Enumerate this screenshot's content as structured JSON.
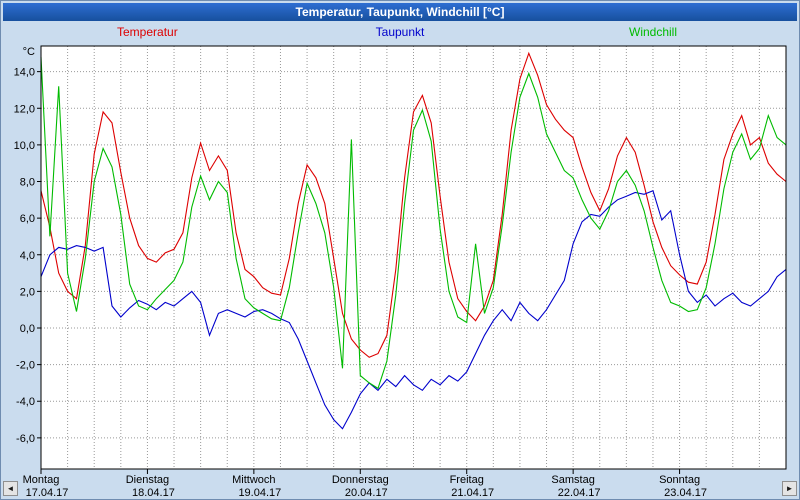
{
  "window": {
    "title": "Temperatur, Taupunkt, Windchill [°C]"
  },
  "legend": [
    {
      "label": "Temperatur",
      "color": "#dd0000"
    },
    {
      "label": "Taupunkt",
      "color": "#0000cc"
    },
    {
      "label": "Windchill",
      "color": "#00bb00"
    }
  ],
  "scrollbar": {
    "left_arrow": "◄",
    "right_arrow": "►"
  },
  "chart_data": {
    "type": "line",
    "title": "Temperatur, Taupunkt, Windchill [°C]",
    "y_unit": "°C",
    "ylim": [
      -7.7,
      15.4
    ],
    "grid": true,
    "x_total_hours": 168,
    "x_step_hours": 2,
    "x_grid_hours": 6,
    "y_ticks": [
      {
        "value": 14,
        "label": "14,0"
      },
      {
        "value": 12,
        "label": "12,0"
      },
      {
        "value": 10,
        "label": "10,0"
      },
      {
        "value": 8,
        "label": "8,0"
      },
      {
        "value": 6,
        "label": "6,0"
      },
      {
        "value": 4,
        "label": "4,0"
      },
      {
        "value": 2,
        "label": "2,0"
      },
      {
        "value": 0,
        "label": "0,0"
      },
      {
        "value": -2,
        "label": "-2,0"
      },
      {
        "value": -4,
        "label": "-4,0"
      },
      {
        "value": -6,
        "label": "-6,0"
      }
    ],
    "x_day_labels": [
      {
        "name": "Montag",
        "date": "17.04.17"
      },
      {
        "name": "Dienstag",
        "date": "18.04.17"
      },
      {
        "name": "Mittwoch",
        "date": "19.04.17"
      },
      {
        "name": "Donnerstag",
        "date": "20.04.17"
      },
      {
        "name": "Freitag",
        "date": "21.04.17"
      },
      {
        "name": "Samstag",
        "date": "22.04.17"
      },
      {
        "name": "Sonntag",
        "date": "23.04.17"
      }
    ],
    "series": [
      {
        "name": "Temperatur",
        "color": "#dd0000",
        "values": [
          7.5,
          5.5,
          3.0,
          2.0,
          1.6,
          4.5,
          9.5,
          11.8,
          11.2,
          8.5,
          6.0,
          4.5,
          3.8,
          3.6,
          4.1,
          4.3,
          5.2,
          8.2,
          10.1,
          8.6,
          9.4,
          8.6,
          5.2,
          3.2,
          2.8,
          2.2,
          1.9,
          1.8,
          3.8,
          6.8,
          8.9,
          8.2,
          6.8,
          3.8,
          0.8,
          -0.6,
          -1.2,
          -1.6,
          -1.4,
          -0.4,
          3.2,
          8.2,
          11.8,
          12.7,
          11.2,
          7.2,
          3.6,
          1.6,
          0.9,
          0.4,
          1.2,
          2.6,
          6.2,
          10.8,
          13.6,
          15.0,
          13.8,
          12.2,
          11.4,
          10.8,
          10.4,
          8.8,
          7.4,
          6.4,
          7.6,
          9.4,
          10.4,
          9.6,
          7.8,
          5.8,
          4.4,
          3.4,
          2.9,
          2.5,
          2.4,
          3.6,
          6.2,
          9.2,
          10.6,
          11.6,
          10.0,
          10.4,
          9.0,
          8.4,
          8.0
        ]
      },
      {
        "name": "Taupunkt",
        "color": "#0000cc",
        "values": [
          2.8,
          4.0,
          4.4,
          4.3,
          4.5,
          4.4,
          4.2,
          4.4,
          1.2,
          0.6,
          1.1,
          1.5,
          1.3,
          1.0,
          1.4,
          1.2,
          1.6,
          2.0,
          1.4,
          -0.4,
          0.8,
          1.0,
          0.8,
          0.6,
          0.9,
          1.0,
          0.8,
          0.5,
          0.3,
          -0.6,
          -1.8,
          -3.0,
          -4.2,
          -5.0,
          -5.5,
          -4.6,
          -3.6,
          -3.0,
          -3.4,
          -2.8,
          -3.2,
          -2.6,
          -3.1,
          -3.4,
          -2.8,
          -3.1,
          -2.6,
          -2.9,
          -2.4,
          -1.4,
          -0.4,
          0.4,
          1.0,
          0.4,
          1.4,
          0.8,
          0.4,
          1.0,
          1.8,
          2.6,
          4.6,
          5.8,
          6.2,
          6.1,
          6.6,
          7.0,
          7.2,
          7.4,
          7.3,
          7.5,
          5.9,
          6.4,
          4.0,
          2.0,
          1.4,
          1.8,
          1.2,
          1.6,
          1.9,
          1.4,
          1.2,
          1.6,
          2.0,
          2.8,
          3.2
        ]
      },
      {
        "name": "Windchill",
        "color": "#00bb00",
        "values": [
          14.8,
          5.0,
          13.2,
          3.0,
          0.9,
          3.8,
          8.0,
          9.8,
          8.8,
          6.2,
          2.4,
          1.2,
          1.0,
          1.6,
          2.1,
          2.6,
          3.6,
          6.6,
          8.3,
          7.0,
          8.0,
          7.4,
          3.8,
          1.6,
          1.1,
          0.8,
          0.5,
          0.4,
          2.2,
          5.2,
          7.9,
          6.8,
          5.2,
          2.2,
          -2.2,
          10.3,
          -2.6,
          -3.0,
          -3.3,
          -1.8,
          1.8,
          6.8,
          10.8,
          11.9,
          10.2,
          5.4,
          2.0,
          0.6,
          0.3,
          4.6,
          0.8,
          2.2,
          5.6,
          9.6,
          12.6,
          13.9,
          12.6,
          10.6,
          9.6,
          8.6,
          8.2,
          7.0,
          6.0,
          5.4,
          6.4,
          8.0,
          8.6,
          7.8,
          6.4,
          4.4,
          2.6,
          1.4,
          1.2,
          0.9,
          1.0,
          2.2,
          4.6,
          7.6,
          9.6,
          10.6,
          9.2,
          9.8,
          11.6,
          10.4,
          10.0
        ]
      }
    ]
  }
}
